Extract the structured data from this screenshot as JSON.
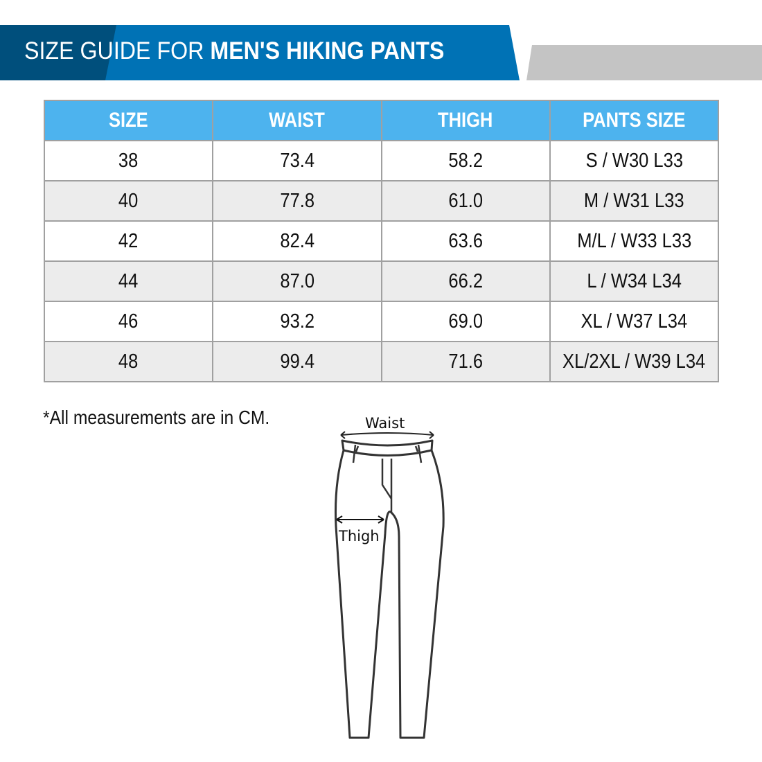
{
  "header": {
    "title_light": "SIZE GUIDE FOR ",
    "title_bold": "MEN'S HIKING PANTS",
    "colors": {
      "dark": "#004f7c",
      "blue": "#0072b5",
      "gray": "#c4c4c4"
    }
  },
  "table": {
    "headers": [
      "SIZE",
      "WAIST",
      "THIGH",
      "PANTS SIZE"
    ],
    "header_color": "#4db3ee",
    "rows": [
      [
        "38",
        "73.4",
        "58.2",
        "S / W30 L33"
      ],
      [
        "40",
        "77.8",
        "61.0",
        "M / W31 L33"
      ],
      [
        "42",
        "82.4",
        "63.6",
        "M/L / W33 L33"
      ],
      [
        "44",
        "87.0",
        "66.2",
        "L / W34 L34"
      ],
      [
        "46",
        "93.2",
        "69.0",
        "XL / W37 L34"
      ],
      [
        "48",
        "99.4",
        "71.6",
        "XL/2XL / W39 L34"
      ]
    ]
  },
  "note": "*All measurements are in CM.",
  "diagram": {
    "waist_label": "Waist",
    "thigh_label": "Thigh"
  }
}
